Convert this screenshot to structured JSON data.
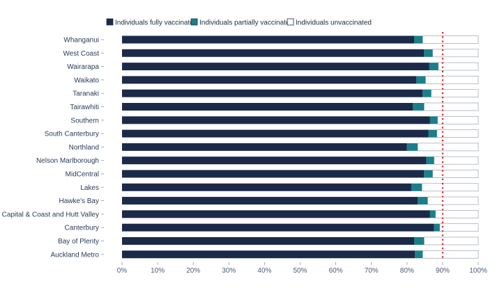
{
  "chart_data": {
    "type": "bar",
    "orientation": "horizontal",
    "stacked": true,
    "categories": [
      "Whanganui",
      "West Coast",
      "Wairarapa",
      "Waikato",
      "Taranaki",
      "Tairawhiti",
      "Southern",
      "South Canterbury",
      "Northland",
      "Nelson Marlborough",
      "MidCentral",
      "Lakes",
      "Hawke's Bay",
      "Capital & Coast and Hutt Valley",
      "Canterbury",
      "Bay of Plenty",
      "Auckland Metro"
    ],
    "series": [
      {
        "name": "Individuals fully vaccinated",
        "color": "#1c2a4a",
        "values": [
          82,
          84.8,
          86.2,
          82.6,
          84.4,
          81.6,
          86.4,
          86,
          80,
          85.4,
          84.8,
          81.2,
          83,
          86.4,
          87.6,
          82,
          82.2
        ]
      },
      {
        "name": "Individuals partially vaccinated",
        "color": "#1a7f8a",
        "values": [
          2.4,
          2.4,
          2.6,
          2.6,
          2.4,
          3.2,
          2.2,
          2.4,
          3.0,
          2.2,
          2.4,
          3.0,
          2.8,
          1.6,
          1.6,
          2.8,
          2.2
        ]
      },
      {
        "name": "Individuals unvaccinated",
        "color": "#ffffff",
        "values": [
          15.6,
          12.8,
          11.2,
          14.8,
          13.2,
          15.2,
          11.4,
          11.6,
          17.0,
          12.4,
          12.8,
          15.8,
          14.2,
          12.0,
          10.8,
          15.2,
          15.6
        ]
      }
    ],
    "x_ticks": [
      "0%",
      "10%",
      "20%",
      "30%",
      "40%",
      "50%",
      "60%",
      "70%",
      "80%",
      "90%",
      "100%"
    ],
    "xlim": [
      0,
      100
    ],
    "target_line": {
      "value": 90,
      "color": "#e02020",
      "style": "dotted"
    },
    "legend_position": "top",
    "grid": false,
    "title": "",
    "xlabel": "",
    "ylabel": ""
  }
}
